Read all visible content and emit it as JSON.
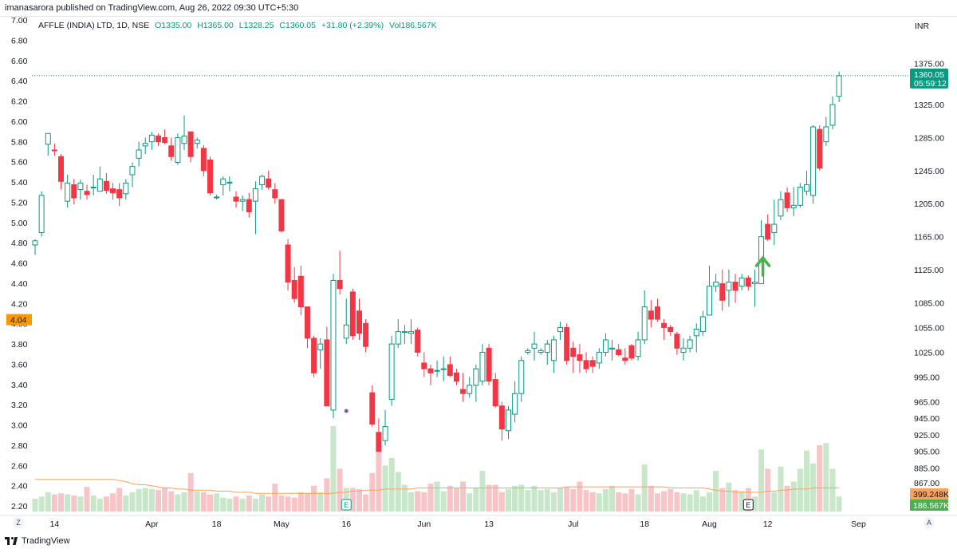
{
  "publisher_line": "imanasarora published on TradingView.com, Aug 26, 2022 09:30 UTC+5:30",
  "header": {
    "symbol": "AFFLE (INDIA) LTD, 1D, NSE",
    "open": "O1335.00",
    "high": "H1365.00",
    "low": "L1328.25",
    "close": "C1360.05",
    "change": "+31.80 (+2.39%)",
    "volume": "Vol186.567K"
  },
  "currency": "INR",
  "footer": {
    "brand": "TradingView"
  },
  "buttons": {
    "goto_date": "Z",
    "auto_scale": "A"
  },
  "colors": {
    "up": "#089981",
    "down": "#f23645",
    "vol_up": "#c8e6c9",
    "vol_down": "#f7c5c8",
    "vol_ma": "#f7a35c",
    "arrow": "#4caf50",
    "last_price_bg": "#089981",
    "left_marker_bg": "#ff9800"
  },
  "chart_data": {
    "type": "candlestick",
    "price_axis": {
      "range": [
        865,
        1385
      ],
      "ticks": [
        "1375.00",
        "1325.00",
        "1285.00",
        "1245.00",
        "1205.00",
        "1165.00",
        "1125.00",
        "1085.00",
        "1055.00",
        "1025.00",
        "995.00",
        "965.00",
        "945.00",
        "925.00",
        "905.00",
        "885.00",
        "867.00"
      ]
    },
    "left_axis": {
      "range": [
        2.2,
        7.0
      ],
      "ticks": [
        "7.00",
        "6.80",
        "6.60",
        "6.40",
        "6.20",
        "6.00",
        "5.80",
        "5.60",
        "5.40",
        "5.20",
        "5.00",
        "4.80",
        "4.60",
        "4.40",
        "4.20",
        "4.00",
        "3.80",
        "3.60",
        "3.40",
        "3.20",
        "3.00",
        "2.80",
        "2.60",
        "2.40",
        "2.20"
      ],
      "marker": "4.04",
      "marker_value": 4.04
    },
    "time_axis": {
      "labels": [
        {
          "label": "14",
          "index": 3
        },
        {
          "label": "Apr",
          "index": 18
        },
        {
          "label": "18",
          "index": 28
        },
        {
          "label": "May",
          "index": 38
        },
        {
          "label": "16",
          "index": 48
        },
        {
          "label": "Jun",
          "index": 60
        },
        {
          "label": "13",
          "index": 70
        },
        {
          "label": "Jul",
          "index": 83
        },
        {
          "label": "18",
          "index": 94
        },
        {
          "label": "Aug",
          "index": 104
        },
        {
          "label": "12",
          "index": 113
        },
        {
          "label": "Sep",
          "index": 127
        }
      ]
    },
    "last_price": {
      "value": 1360.05,
      "label": "1360.05",
      "countdown": "05:59:12"
    },
    "volume_labels": {
      "ma": "399.248K",
      "current": "186.567K"
    },
    "events": [
      {
        "label": "E",
        "index": 48
      },
      {
        "label": "E",
        "index": 110
      }
    ],
    "signal_arrow_index": 112,
    "candles": [
      {
        "o": 1155,
        "h": 1162,
        "l": 1143,
        "c": 1160
      },
      {
        "o": 1170,
        "h": 1220,
        "l": 1165,
        "c": 1215
      },
      {
        "o": 1277,
        "h": 1290,
        "l": 1263,
        "c": 1290
      },
      {
        "o": 1270,
        "h": 1278,
        "l": 1263,
        "c": 1269
      },
      {
        "o": 1262,
        "h": 1265,
        "l": 1222,
        "c": 1232
      },
      {
        "o": 1208,
        "h": 1240,
        "l": 1200,
        "c": 1230
      },
      {
        "o": 1228,
        "h": 1235,
        "l": 1204,
        "c": 1212
      },
      {
        "o": 1222,
        "h": 1234,
        "l": 1210,
        "c": 1230
      },
      {
        "o": 1220,
        "h": 1228,
        "l": 1210,
        "c": 1216
      },
      {
        "o": 1225,
        "h": 1240,
        "l": 1215,
        "c": 1225
      },
      {
        "o": 1220,
        "h": 1250,
        "l": 1220,
        "c": 1235
      },
      {
        "o": 1232,
        "h": 1242,
        "l": 1217,
        "c": 1221
      },
      {
        "o": 1223,
        "h": 1230,
        "l": 1210,
        "c": 1218
      },
      {
        "o": 1222,
        "h": 1230,
        "l": 1202,
        "c": 1212
      },
      {
        "o": 1217,
        "h": 1235,
        "l": 1210,
        "c": 1230
      },
      {
        "o": 1240,
        "h": 1255,
        "l": 1225,
        "c": 1250
      },
      {
        "o": 1260,
        "h": 1280,
        "l": 1250,
        "c": 1270
      },
      {
        "o": 1275,
        "h": 1285,
        "l": 1265,
        "c": 1278
      },
      {
        "o": 1280,
        "h": 1292,
        "l": 1270,
        "c": 1288
      },
      {
        "o": 1287,
        "h": 1290,
        "l": 1275,
        "c": 1280
      },
      {
        "o": 1285,
        "h": 1295,
        "l": 1277,
        "c": 1279
      },
      {
        "o": 1275,
        "h": 1285,
        "l": 1257,
        "c": 1262
      },
      {
        "o": 1255,
        "h": 1290,
        "l": 1252,
        "c": 1285
      },
      {
        "o": 1278,
        "h": 1312,
        "l": 1270,
        "c": 1287
      },
      {
        "o": 1292,
        "h": 1292,
        "l": 1255,
        "c": 1262
      },
      {
        "o": 1278,
        "h": 1285,
        "l": 1272,
        "c": 1282
      },
      {
        "o": 1272,
        "h": 1276,
        "l": 1238,
        "c": 1245
      },
      {
        "o": 1258,
        "h": 1262,
        "l": 1215,
        "c": 1218
      },
      {
        "o": 1213,
        "h": 1216,
        "l": 1210,
        "c": 1213
      },
      {
        "o": 1228,
        "h": 1238,
        "l": 1215,
        "c": 1235
      },
      {
        "o": 1230,
        "h": 1238,
        "l": 1220,
        "c": 1231
      },
      {
        "o": 1213,
        "h": 1220,
        "l": 1200,
        "c": 1208
      },
      {
        "o": 1208,
        "h": 1215,
        "l": 1196,
        "c": 1210
      },
      {
        "o": 1210,
        "h": 1218,
        "l": 1188,
        "c": 1195
      },
      {
        "o": 1208,
        "h": 1232,
        "l": 1168,
        "c": 1223
      },
      {
        "o": 1228,
        "h": 1240,
        "l": 1222,
        "c": 1238
      },
      {
        "o": 1235,
        "h": 1245,
        "l": 1222,
        "c": 1225
      },
      {
        "o": 1222,
        "h": 1230,
        "l": 1205,
        "c": 1212
      },
      {
        "o": 1210,
        "h": 1210,
        "l": 1170,
        "c": 1172
      },
      {
        "o": 1155,
        "h": 1162,
        "l": 1100,
        "c": 1110
      },
      {
        "o": 1112,
        "h": 1128,
        "l": 1085,
        "c": 1090
      },
      {
        "o": 1117,
        "h": 1130,
        "l": 1070,
        "c": 1080
      },
      {
        "o": 1080,
        "h": 1080,
        "l": 1030,
        "c": 1042
      },
      {
        "o": 1042,
        "h": 1045,
        "l": 995,
        "c": 1000
      },
      {
        "o": 1028,
        "h": 1042,
        "l": 1005,
        "c": 1035
      },
      {
        "o": 1040,
        "h": 1056,
        "l": 960,
        "c": 960
      },
      {
        "o": 955,
        "h": 1120,
        "l": 945,
        "c": 1112
      },
      {
        "o": 1112,
        "h": 1148,
        "l": 1095,
        "c": 1102
      },
      {
        "o": 1042,
        "h": 1090,
        "l": 1035,
        "c": 1058
      },
      {
        "o": 1098,
        "h": 1102,
        "l": 1040,
        "c": 1045
      },
      {
        "o": 1075,
        "h": 1090,
        "l": 1040,
        "c": 1048
      },
      {
        "o": 1060,
        "h": 1065,
        "l": 1025,
        "c": 1032
      },
      {
        "o": 976,
        "h": 985,
        "l": 935,
        "c": 938
      },
      {
        "o": 928,
        "h": 945,
        "l": 905,
        "c": 905
      },
      {
        "o": 918,
        "h": 955,
        "l": 912,
        "c": 935
      },
      {
        "o": 968,
        "h": 1045,
        "l": 960,
        "c": 1035
      },
      {
        "o": 1035,
        "h": 1065,
        "l": 1030,
        "c": 1050
      },
      {
        "o": 1050,
        "h": 1058,
        "l": 1035,
        "c": 1050
      },
      {
        "o": 1048,
        "h": 1065,
        "l": 1035,
        "c": 1050
      },
      {
        "o": 1052,
        "h": 1055,
        "l": 1020,
        "c": 1025
      },
      {
        "o": 1012,
        "h": 1025,
        "l": 995,
        "c": 1005
      },
      {
        "o": 1005,
        "h": 1010,
        "l": 985,
        "c": 1000
      },
      {
        "o": 1002,
        "h": 1015,
        "l": 995,
        "c": 1003
      },
      {
        "o": 1005,
        "h": 1020,
        "l": 990,
        "c": 1005
      },
      {
        "o": 1010,
        "h": 1020,
        "l": 995,
        "c": 997
      },
      {
        "o": 1000,
        "h": 1005,
        "l": 985,
        "c": 990
      },
      {
        "o": 980,
        "h": 1000,
        "l": 965,
        "c": 975
      },
      {
        "o": 975,
        "h": 995,
        "l": 970,
        "c": 985
      },
      {
        "o": 985,
        "h": 1010,
        "l": 965,
        "c": 1005
      },
      {
        "o": 990,
        "h": 1035,
        "l": 985,
        "c": 1025
      },
      {
        "o": 1030,
        "h": 1035,
        "l": 985,
        "c": 990
      },
      {
        "o": 992,
        "h": 1000,
        "l": 958,
        "c": 960
      },
      {
        "o": 960,
        "h": 965,
        "l": 918,
        "c": 932
      },
      {
        "o": 930,
        "h": 960,
        "l": 920,
        "c": 955
      },
      {
        "o": 950,
        "h": 990,
        "l": 940,
        "c": 975
      },
      {
        "o": 975,
        "h": 1020,
        "l": 965,
        "c": 1015
      },
      {
        "o": 1025,
        "h": 1030,
        "l": 1022,
        "c": 1027
      },
      {
        "o": 1030,
        "h": 1050,
        "l": 1015,
        "c": 1035
      },
      {
        "o": 1025,
        "h": 1030,
        "l": 1022,
        "c": 1027
      },
      {
        "o": 1025,
        "h": 1040,
        "l": 1010,
        "c": 1035
      },
      {
        "o": 1015,
        "h": 1045,
        "l": 1000,
        "c": 1040
      },
      {
        "o": 1050,
        "h": 1062,
        "l": 1040,
        "c": 1055
      },
      {
        "o": 1055,
        "h": 1060,
        "l": 1010,
        "c": 1015
      },
      {
        "o": 1030,
        "h": 1038,
        "l": 1000,
        "c": 1020
      },
      {
        "o": 1022,
        "h": 1035,
        "l": 1000,
        "c": 1015
      },
      {
        "o": 1015,
        "h": 1025,
        "l": 1000,
        "c": 1005
      },
      {
        "o": 1015,
        "h": 1020,
        "l": 1000,
        "c": 1008
      },
      {
        "o": 1012,
        "h": 1030,
        "l": 1005,
        "c": 1025
      },
      {
        "o": 1025,
        "h": 1048,
        "l": 1020,
        "c": 1040
      },
      {
        "o": 1030,
        "h": 1040,
        "l": 1015,
        "c": 1030
      },
      {
        "o": 1028,
        "h": 1035,
        "l": 1020,
        "c": 1022
      },
      {
        "o": 1018,
        "h": 1030,
        "l": 1010,
        "c": 1015
      },
      {
        "o": 1033,
        "h": 1035,
        "l": 1015,
        "c": 1018
      },
      {
        "o": 1020,
        "h": 1050,
        "l": 1015,
        "c": 1040
      },
      {
        "o": 1040,
        "h": 1100,
        "l": 1035,
        "c": 1080
      },
      {
        "o": 1075,
        "h": 1088,
        "l": 1055,
        "c": 1065
      },
      {
        "o": 1080,
        "h": 1090,
        "l": 1062,
        "c": 1065
      },
      {
        "o": 1060,
        "h": 1065,
        "l": 1040,
        "c": 1055
      },
      {
        "o": 1055,
        "h": 1058,
        "l": 1045,
        "c": 1050
      },
      {
        "o": 1047,
        "h": 1050,
        "l": 1022,
        "c": 1030
      },
      {
        "o": 1025,
        "h": 1042,
        "l": 1015,
        "c": 1030
      },
      {
        "o": 1030,
        "h": 1045,
        "l": 1025,
        "c": 1040
      },
      {
        "o": 1045,
        "h": 1060,
        "l": 1025,
        "c": 1053
      },
      {
        "o": 1050,
        "h": 1075,
        "l": 1045,
        "c": 1068
      },
      {
        "o": 1070,
        "h": 1130,
        "l": 1070,
        "c": 1105
      },
      {
        "o": 1105,
        "h": 1120,
        "l": 1098,
        "c": 1110
      },
      {
        "o": 1108,
        "h": 1125,
        "l": 1075,
        "c": 1088
      },
      {
        "o": 1100,
        "h": 1125,
        "l": 1080,
        "c": 1110
      },
      {
        "o": 1110,
        "h": 1120,
        "l": 1085,
        "c": 1100
      },
      {
        "o": 1105,
        "h": 1120,
        "l": 1100,
        "c": 1115
      },
      {
        "o": 1115,
        "h": 1118,
        "l": 1100,
        "c": 1105
      },
      {
        "o": 1108,
        "h": 1125,
        "l": 1080,
        "c": 1110
      },
      {
        "o": 1108,
        "h": 1185,
        "l": 1108,
        "c": 1165
      },
      {
        "o": 1180,
        "h": 1192,
        "l": 1160,
        "c": 1162
      },
      {
        "o": 1170,
        "h": 1210,
        "l": 1155,
        "c": 1180
      },
      {
        "o": 1190,
        "h": 1220,
        "l": 1185,
        "c": 1210
      },
      {
        "o": 1218,
        "h": 1225,
        "l": 1195,
        "c": 1200
      },
      {
        "o": 1200,
        "h": 1225,
        "l": 1190,
        "c": 1203
      },
      {
        "o": 1203,
        "h": 1230,
        "l": 1200,
        "c": 1225
      },
      {
        "o": 1220,
        "h": 1245,
        "l": 1215,
        "c": 1228
      },
      {
        "o": 1215,
        "h": 1300,
        "l": 1205,
        "c": 1298
      },
      {
        "o": 1295,
        "h": 1300,
        "l": 1245,
        "c": 1248
      },
      {
        "o": 1280,
        "h": 1310,
        "l": 1275,
        "c": 1298
      },
      {
        "o": 1300,
        "h": 1335,
        "l": 1295,
        "c": 1325
      },
      {
        "o": 1335,
        "h": 1365,
        "l": 1328,
        "c": 1360
      }
    ],
    "volume": [
      12,
      14,
      18,
      16,
      17,
      16,
      15,
      14,
      23,
      15,
      12,
      14,
      17,
      22,
      15,
      18,
      21,
      22,
      21,
      20,
      22,
      19,
      16,
      18,
      36,
      19,
      18,
      16,
      17,
      13,
      12,
      14,
      12,
      15,
      12,
      16,
      14,
      26,
      15,
      14,
      13,
      18,
      17,
      24,
      18,
      31,
      80,
      40,
      22,
      22,
      21,
      16,
      36,
      56,
      43,
      50,
      37,
      25,
      18,
      19,
      18,
      26,
      28,
      19,
      24,
      22,
      28,
      17,
      22,
      38,
      25,
      25,
      18,
      21,
      24,
      25,
      20,
      24,
      20,
      21,
      18,
      22,
      23,
      21,
      28,
      20,
      18,
      17,
      21,
      24,
      18,
      17,
      21,
      16,
      44,
      24,
      17,
      19,
      21,
      18,
      17,
      16,
      20,
      14,
      18,
      38,
      22,
      27,
      20,
      19,
      22,
      14,
      58,
      40,
      18,
      42,
      24,
      28,
      40,
      57,
      45,
      62,
      64,
      40,
      14
    ],
    "volume_ma": [
      30,
      30,
      30,
      30,
      30,
      30,
      30,
      30,
      30,
      30,
      30,
      30,
      30,
      29,
      28,
      26,
      25,
      25,
      24,
      23,
      22,
      22,
      21,
      21,
      20,
      20,
      20,
      20,
      19,
      19,
      19,
      18,
      18,
      18,
      17,
      17,
      17,
      17,
      17,
      17,
      17,
      17,
      17,
      17,
      17,
      17,
      17,
      18,
      18,
      19,
      19,
      20,
      20,
      20,
      21,
      21,
      21,
      21,
      21,
      22,
      22,
      22,
      22,
      22,
      22,
      22,
      22,
      22,
      22,
      22,
      22,
      22,
      22,
      22,
      22,
      22,
      22,
      22,
      22,
      22,
      22,
      22,
      23,
      23,
      23,
      23,
      23,
      23,
      23,
      23,
      23,
      23,
      23,
      23,
      23,
      23,
      23,
      23,
      22,
      22,
      22,
      22,
      22,
      22,
      21,
      20,
      19,
      19,
      18,
      18,
      18,
      18,
      18,
      19,
      19,
      20,
      20,
      21,
      21,
      21,
      22,
      22,
      22,
      22,
      22
    ]
  }
}
